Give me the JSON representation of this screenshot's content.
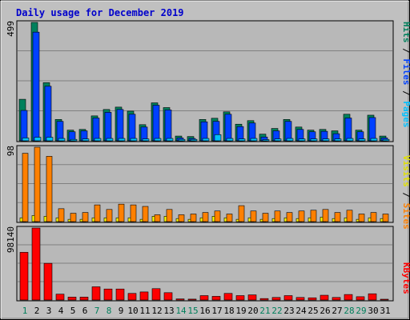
{
  "title": "Daily usage for December 2019",
  "colors": {
    "frame_bg": "#c0c0c0",
    "plot_bg": "#b8b8b8",
    "title": "#0000cc",
    "hits": "#00805c",
    "files": "#0040ff",
    "pages": "#00c0ff",
    "visits": "#ffff00",
    "sites": "#ff8000",
    "kbytes": "#ff0000",
    "weekend_label": "#00805c",
    "weekday_label": "#000000"
  },
  "axes": {
    "top_max_label": "499",
    "middle_max_label": "98",
    "bottom_max_label": "98140"
  },
  "legends": {
    "top": {
      "pages": "Pages",
      "files": "Files",
      "hits": "Hits",
      "sep": "/"
    },
    "middle": {
      "sites": "Sites",
      "visits": "Visits",
      "sep": "/"
    },
    "bottom": {
      "kbytes": "KBytes"
    }
  },
  "chart_data": [
    {
      "type": "bar",
      "title": "Daily usage for December 2019",
      "categories": [
        "1",
        "2",
        "3",
        "4",
        "5",
        "6",
        "7",
        "8",
        "9",
        "10",
        "11",
        "12",
        "13",
        "14",
        "15",
        "16",
        "17",
        "18",
        "19",
        "20",
        "21",
        "22",
        "23",
        "24",
        "25",
        "26",
        "27",
        "28",
        "29",
        "30",
        "31"
      ],
      "weekend_days": [
        "1",
        "7",
        "8",
        "14",
        "15",
        "21",
        "22",
        "28",
        "29"
      ],
      "ylim": [
        0,
        499
      ],
      "series": [
        {
          "name": "Hits",
          "values": [
            175,
            499,
            245,
            90,
            45,
            48,
            105,
            132,
            142,
            125,
            68,
            160,
            140,
            20,
            18,
            90,
            95,
            122,
            70,
            85,
            28,
            52,
            90,
            58,
            45,
            48,
            42,
            112,
            45,
            108,
            20
          ]
        },
        {
          "name": "Files",
          "values": [
            128,
            458,
            230,
            82,
            38,
            42,
            96,
            120,
            132,
            112,
            58,
            150,
            130,
            12,
            10,
            80,
            82,
            112,
            60,
            75,
            16,
            42,
            82,
            48,
            38,
            40,
            30,
            96,
            38,
            98,
            12
          ]
        },
        {
          "name": "Pages",
          "values": [
            12,
            15,
            15,
            10,
            6,
            8,
            10,
            10,
            10,
            10,
            8,
            10,
            10,
            6,
            6,
            10,
            26,
            10,
            8,
            10,
            5,
            8,
            10,
            8,
            8,
            8,
            8,
            10,
            8,
            10,
            6
          ]
        }
      ]
    },
    {
      "type": "bar",
      "categories": [
        "1",
        "2",
        "3",
        "4",
        "5",
        "6",
        "7",
        "8",
        "9",
        "10",
        "11",
        "12",
        "13",
        "14",
        "15",
        "16",
        "17",
        "18",
        "19",
        "20",
        "21",
        "22",
        "23",
        "24",
        "25",
        "26",
        "27",
        "28",
        "29",
        "30",
        "31"
      ],
      "ylim": [
        0,
        98
      ],
      "series": [
        {
          "name": "Visits",
          "values": [
            5,
            8,
            7,
            5,
            3,
            3,
            5,
            5,
            5,
            5,
            3,
            7,
            7,
            4,
            3,
            5,
            7,
            5,
            3,
            5,
            3,
            4,
            5,
            4,
            5,
            6,
            4,
            5,
            3,
            5,
            4
          ]
        },
        {
          "name": "Sites",
          "values": [
            90,
            98,
            86,
            17,
            11,
            12,
            22,
            16,
            23,
            22,
            20,
            9,
            16,
            9,
            10,
            12,
            14,
            10,
            21,
            14,
            11,
            14,
            12,
            14,
            15,
            16,
            12,
            15,
            10,
            12,
            10
          ]
        }
      ]
    },
    {
      "type": "bar",
      "categories": [
        "1",
        "2",
        "3",
        "4",
        "5",
        "6",
        "7",
        "8",
        "9",
        "10",
        "11",
        "12",
        "13",
        "14",
        "15",
        "16",
        "17",
        "18",
        "19",
        "20",
        "21",
        "22",
        "23",
        "24",
        "25",
        "26",
        "27",
        "28",
        "29",
        "30",
        "31"
      ],
      "ylim": [
        0,
        98140
      ],
      "series": [
        {
          "name": "KBytes",
          "values": [
            65000,
            98140,
            50000,
            8000,
            4000,
            4000,
            18000,
            15000,
            15000,
            9000,
            11000,
            15500,
            10000,
            1500,
            1200,
            6000,
            5000,
            9000,
            6000,
            7000,
            2000,
            3500,
            6000,
            3500,
            3000,
            6500,
            3500,
            7500,
            4500,
            8500,
            1000
          ]
        }
      ]
    }
  ]
}
